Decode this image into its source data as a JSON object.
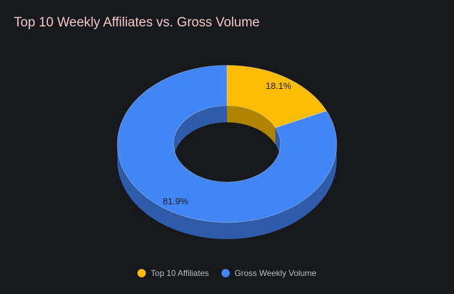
{
  "chart_data": {
    "type": "pie",
    "title": "Top 10 Weekly Affiliates vs. Gross Volume",
    "donut": true,
    "three_d": true,
    "legend_position": "bottom",
    "categories": [
      "Top 10 Affiliates",
      "Gross Weekly Volume"
    ],
    "values": [
      18.1,
      81.9
    ],
    "data_labels": [
      "18.1%",
      "81.9%"
    ],
    "colors": [
      "#fbbc04",
      "#4285f4"
    ],
    "side_colors": [
      "#b08300",
      "#2e5cab"
    ]
  }
}
